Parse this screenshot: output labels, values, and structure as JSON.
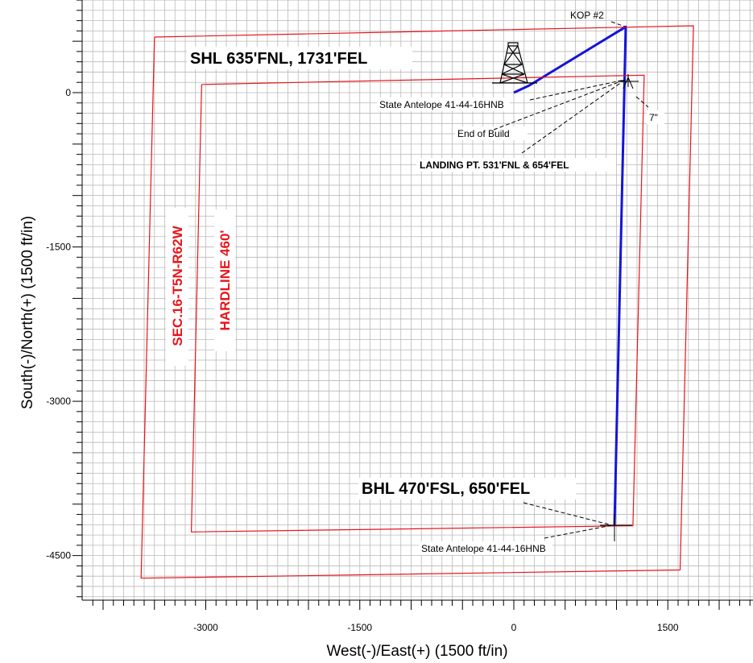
{
  "chart_data": {
    "type": "line",
    "xlabel": "West(-)/East(+) (1500 ft/in)",
    "ylabel": "South(-)/North(+) (1500 ft/in)",
    "xlim": [
      -4150,
      2320
    ],
    "ylim": [
      -4900,
      800
    ],
    "x_ticks": [
      -3000,
      -1500,
      0,
      1500
    ],
    "y_ticks": [
      0,
      -1500,
      -3000,
      -4500
    ],
    "grid": true,
    "colors": {
      "boundary": "#e8141b",
      "wellbore": "#1414d8",
      "grid": "#b9b9b9",
      "leader": "#000000"
    },
    "series": [
      {
        "kind": "wellbore",
        "x": [
          0,
          150,
          1090,
          980
        ],
        "y": [
          0,
          70,
          640,
          -4210
        ]
      },
      {
        "kind": "section-boundary",
        "x": [
          -3500,
          1750,
          1620,
          -3630,
          -3500
        ],
        "y": [
          540,
          650,
          -4640,
          -4720,
          540
        ]
      },
      {
        "kind": "hardline-boundary",
        "x": [
          -3040,
          1270,
          1160,
          -3140,
          -3040
        ],
        "y": [
          80,
          170,
          -4210,
          -4270,
          80
        ]
      }
    ],
    "annotations": [
      {
        "text": "SHL 635'FNL, 1731'FEL",
        "style": "big"
      },
      {
        "text": "KOP #2",
        "style": "small"
      },
      {
        "text": "State Antelope 41-44-16HNB",
        "style": "small"
      },
      {
        "text": "End of Build",
        "style": "small"
      },
      {
        "text": "7\"",
        "style": "small"
      },
      {
        "text": "LANDING PT. 531'FNL & 654'FEL",
        "style": "small-bold"
      },
      {
        "text": "SEC.16-T5N-R62W",
        "style": "red"
      },
      {
        "text": "HARDLINE 460'",
        "style": "red"
      },
      {
        "text": "BHL 470'FSL, 650'FEL",
        "style": "big"
      },
      {
        "text": "State Antelope 41-44-16HNB",
        "style": "small"
      }
    ]
  }
}
